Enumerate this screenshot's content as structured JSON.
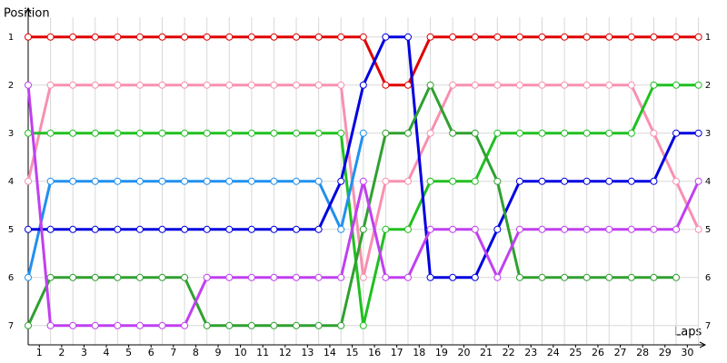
{
  "chart_data": {
    "type": "line",
    "y_label": "Position",
    "x_label": "Laps",
    "x": [
      0,
      1,
      2,
      3,
      4,
      5,
      6,
      7,
      8,
      9,
      10,
      11,
      12,
      13,
      14,
      15,
      16,
      17,
      18,
      19,
      20,
      21,
      22,
      23,
      24,
      25,
      26,
      27,
      28,
      29,
      30
    ],
    "xlim": [
      0,
      30.3
    ],
    "xticks": [
      {
        "value": 0.5,
        "label": "1"
      },
      {
        "value": 1.5,
        "label": "2"
      },
      {
        "value": 2.5,
        "label": "3"
      },
      {
        "value": 3.5,
        "label": "4"
      },
      {
        "value": 4.5,
        "label": "5"
      },
      {
        "value": 5.5,
        "label": "6"
      },
      {
        "value": 6.5,
        "label": "7"
      },
      {
        "value": 7.5,
        "label": "8"
      },
      {
        "value": 8.5,
        "label": "9"
      },
      {
        "value": 9.5,
        "label": "10"
      },
      {
        "value": 10.5,
        "label": "11"
      },
      {
        "value": 11.5,
        "label": "12"
      },
      {
        "value": 12.5,
        "label": "13"
      },
      {
        "value": 13.5,
        "label": "14"
      },
      {
        "value": 14.5,
        "label": "15"
      },
      {
        "value": 15.5,
        "label": "16"
      },
      {
        "value": 16.5,
        "label": "17"
      },
      {
        "value": 17.5,
        "label": "18"
      },
      {
        "value": 18.5,
        "label": "19"
      },
      {
        "value": 19.5,
        "label": "20"
      },
      {
        "value": 20.5,
        "label": "21"
      },
      {
        "value": 21.5,
        "label": "22"
      },
      {
        "value": 22.5,
        "label": "23"
      },
      {
        "value": 23.5,
        "label": "24"
      },
      {
        "value": 24.5,
        "label": "25"
      },
      {
        "value": 25.5,
        "label": "26"
      },
      {
        "value": 26.5,
        "label": "27"
      },
      {
        "value": 27.5,
        "label": "28"
      },
      {
        "value": 28.5,
        "label": "29"
      },
      {
        "value": 29.5,
        "label": "30"
      }
    ],
    "ylim": [
      0.4,
      7.4
    ],
    "y_reversed": true,
    "yticks": [
      1,
      2,
      3,
      4,
      5,
      6,
      7
    ],
    "y2ticks": [
      1,
      2,
      3,
      4,
      5,
      6,
      7
    ],
    "grid": true,
    "series": [
      {
        "color": "#e00000",
        "values": [
          1,
          1,
          1,
          1,
          1,
          1,
          1,
          1,
          1,
          1,
          1,
          1,
          1,
          1,
          1,
          1,
          2,
          2,
          1,
          1,
          1,
          1,
          1,
          1,
          1,
          1,
          1,
          1,
          1,
          1,
          1
        ]
      },
      {
        "color": "#f890b0",
        "values": [
          4,
          2,
          2,
          2,
          2,
          2,
          2,
          2,
          2,
          2,
          2,
          2,
          2,
          2,
          2,
          6,
          4,
          4,
          3,
          2,
          2,
          2,
          2,
          2,
          2,
          2,
          2,
          2,
          3,
          4,
          5
        ]
      },
      {
        "color": "#20c020",
        "values": [
          3,
          3,
          3,
          3,
          3,
          3,
          3,
          3,
          3,
          3,
          3,
          3,
          3,
          3,
          3,
          7,
          5,
          5,
          4,
          4,
          4,
          3,
          3,
          3,
          3,
          3,
          3,
          3,
          2,
          2,
          2
        ]
      },
      {
        "color": "#2090f0",
        "values": [
          6,
          4,
          4,
          4,
          4,
          4,
          4,
          4,
          4,
          4,
          4,
          4,
          4,
          4,
          5,
          3,
          null,
          null,
          null,
          null,
          null,
          null,
          null,
          null,
          null,
          null,
          null,
          null,
          null,
          null,
          null
        ]
      },
      {
        "color": "#0000e0",
        "values": [
          5,
          5,
          5,
          5,
          5,
          5,
          5,
          5,
          5,
          5,
          5,
          5,
          5,
          5,
          4,
          2,
          1,
          1,
          6,
          6,
          6,
          5,
          4,
          4,
          4,
          4,
          4,
          4,
          4,
          3,
          3
        ]
      },
      {
        "color": "#30a030",
        "values": [
          7,
          6,
          6,
          6,
          6,
          6,
          6,
          6,
          7,
          7,
          7,
          7,
          7,
          7,
          7,
          5,
          3,
          3,
          2,
          3,
          3,
          4,
          6,
          6,
          6,
          6,
          6,
          6,
          6,
          6,
          null
        ]
      },
      {
        "color": "#c040f0",
        "values": [
          2,
          7,
          7,
          7,
          7,
          7,
          7,
          7,
          6,
          6,
          6,
          6,
          6,
          6,
          6,
          4,
          6,
          6,
          5,
          5,
          5,
          6,
          5,
          5,
          5,
          5,
          5,
          5,
          5,
          5,
          4
        ]
      }
    ]
  }
}
